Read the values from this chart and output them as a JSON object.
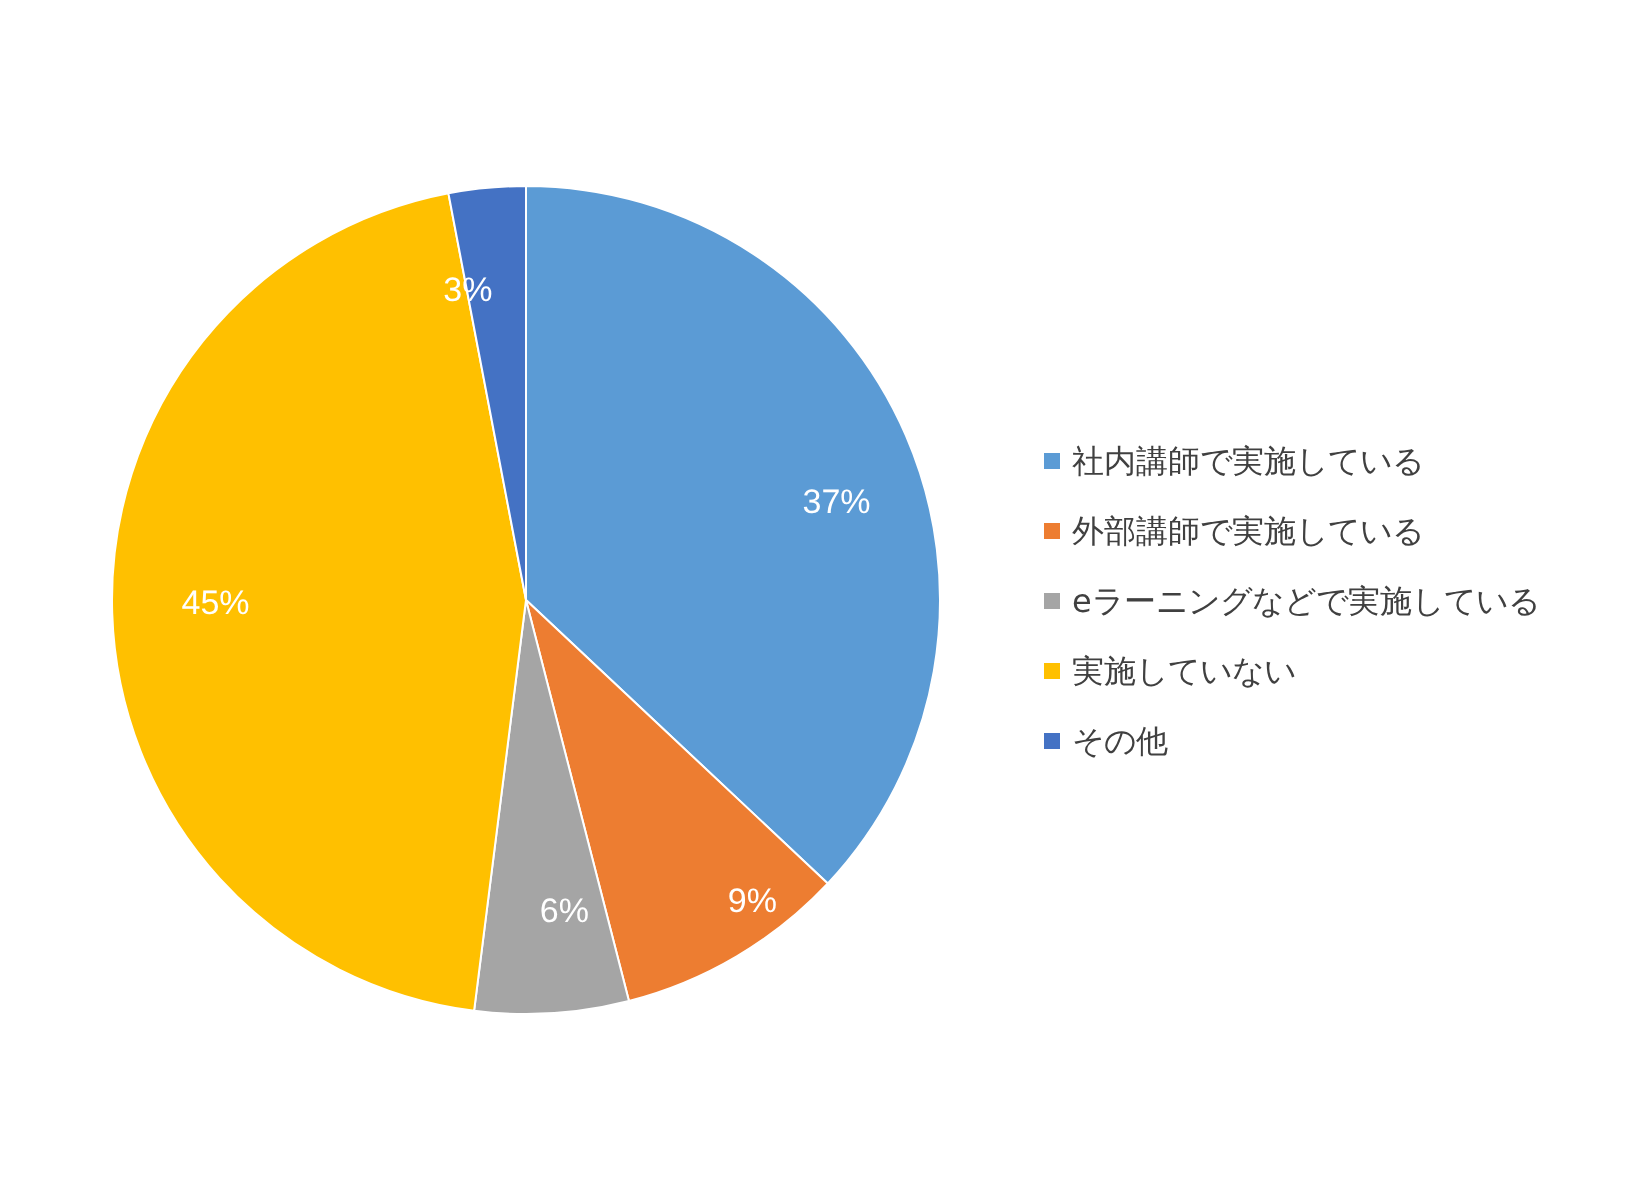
{
  "chart_data": {
    "type": "pie",
    "categories": [
      "社内講師で実施している",
      "外部講師で実施している",
      "eラーニングなどで実施している",
      "実施していない",
      "その他"
    ],
    "values": [
      37,
      9,
      6,
      45,
      3
    ],
    "colors": [
      "#5b9bd5",
      "#ed7d31",
      "#a5a5a5",
      "#ffc000",
      "#4472c4"
    ],
    "value_labels": [
      "37%",
      "9%",
      "6%",
      "45%",
      "3%"
    ],
    "legend": "right"
  }
}
